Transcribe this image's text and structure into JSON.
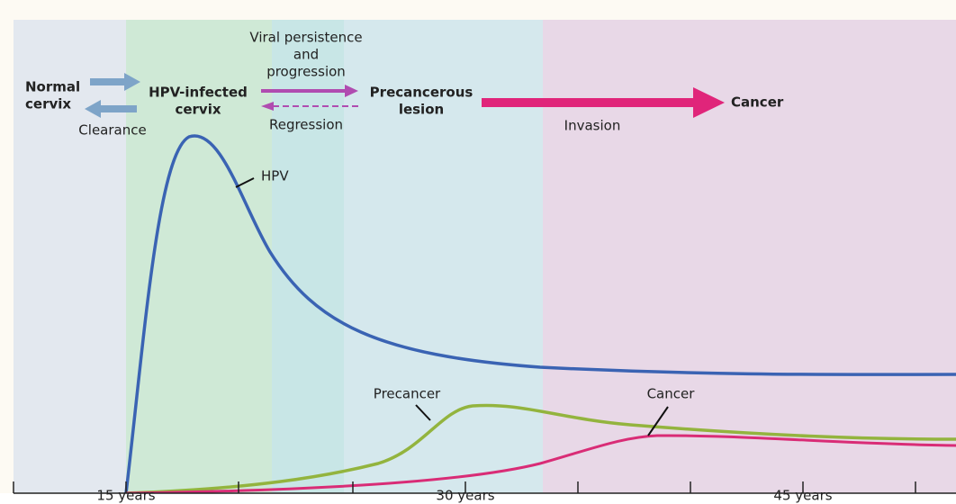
{
  "stages": {
    "normal": [
      "Normal",
      "cervix"
    ],
    "infected": [
      "HPV-infected",
      "cervix"
    ],
    "precancerous": [
      "Precancerous",
      "lesion"
    ],
    "cancer": "Cancer"
  },
  "transitions": {
    "clearance": "Clearance",
    "progression": [
      "Viral persistence",
      "and",
      "progression"
    ],
    "regression": "Regression",
    "invasion": "Invasion"
  },
  "curve_labels": {
    "hpv": "HPV",
    "precancer": "Precancer",
    "cancer": "Cancer"
  },
  "axis_ticks": [
    "15 years",
    "30 years",
    "45 years"
  ]
}
